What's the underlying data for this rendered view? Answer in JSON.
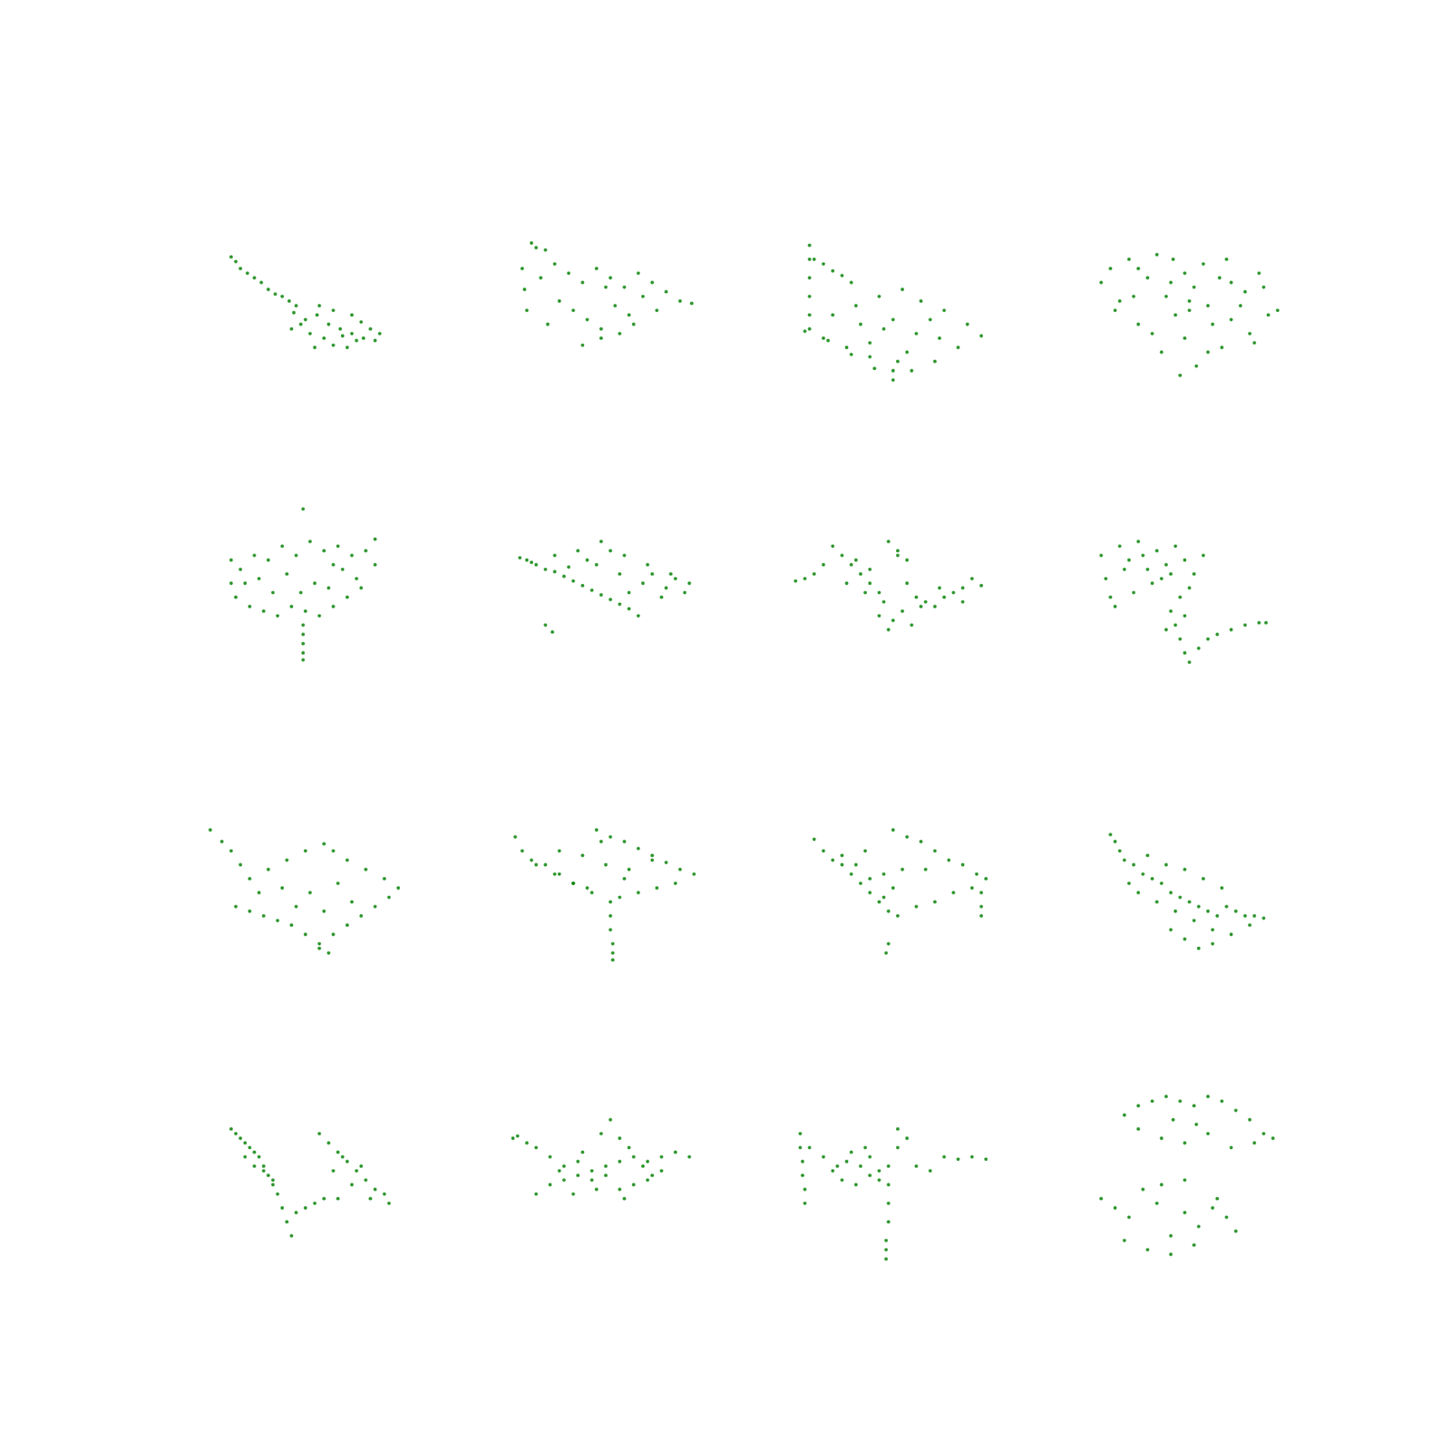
{
  "chart_data": [
    {
      "type": "scatter",
      "x": [
        18,
        20,
        22,
        25,
        28,
        31,
        34,
        37,
        40,
        43,
        46,
        45,
        50,
        55,
        60,
        65,
        70,
        75,
        80,
        52,
        58,
        62,
        68,
        72,
        48,
        56,
        62,
        74,
        78,
        66,
        54,
        44,
        70,
        82
      ],
      "values": [
        69,
        67,
        64,
        62,
        60,
        58,
        55,
        53,
        52,
        50,
        48,
        45,
        42,
        44,
        40,
        38,
        36,
        34,
        33,
        36,
        34,
        31,
        30,
        33,
        40,
        48,
        46,
        41,
        38,
        35,
        30,
        38,
        44,
        36
      ],
      "xlim": [
        0,
        100
      ],
      "ylim": [
        0,
        100
      ],
      "color": "#008000",
      "marker": "circle",
      "grid": false,
      "tick_labels": false
    },
    {
      "type": "scatter",
      "x": [
        18,
        20,
        24,
        14,
        15,
        16,
        22,
        28,
        34,
        40,
        46,
        52,
        58,
        64,
        70,
        76,
        82,
        87,
        30,
        36,
        42,
        48,
        54,
        60,
        66,
        40,
        48,
        56,
        25,
        72,
        62,
        50
      ],
      "values": [
        75,
        73,
        72,
        64,
        55,
        46,
        60,
        66,
        62,
        58,
        64,
        60,
        56,
        62,
        58,
        54,
        50,
        49,
        50,
        46,
        42,
        38,
        48,
        44,
        52,
        31,
        34,
        36,
        40,
        46,
        40,
        56
      ],
      "xlim": [
        0,
        100
      ],
      "ylim": [
        0,
        100
      ],
      "color": "#008000",
      "marker": "circle",
      "grid": false,
      "tick_labels": false
    },
    {
      "type": "scatter",
      "x": [
        14,
        14,
        14,
        14,
        14,
        14,
        16,
        20,
        24,
        28,
        32,
        54,
        44,
        34,
        24,
        12,
        20,
        30,
        40,
        50,
        62,
        72,
        82,
        88,
        78,
        68,
        58,
        50,
        42,
        32,
        22,
        50,
        60,
        40,
        66,
        56,
        46,
        36,
        52,
        70
      ],
      "values": [
        74,
        68,
        60,
        52,
        44,
        38,
        68,
        66,
        63,
        61,
        58,
        55,
        52,
        48,
        44,
        37,
        34,
        30,
        26,
        20,
        50,
        46,
        40,
        35,
        30,
        24,
        20,
        16,
        21,
        27,
        33,
        42,
        36,
        32,
        42,
        28,
        38,
        40,
        24,
        34
      ],
      "xlim": [
        0,
        100
      ],
      "ylim": [
        0,
        100
      ],
      "color": "#008000",
      "marker": "circle",
      "grid": false,
      "tick_labels": false
    },
    {
      "type": "scatter",
      "x": [
        14,
        18,
        22,
        26,
        30,
        34,
        38,
        42,
        46,
        50,
        54,
        58,
        62,
        66,
        70,
        74,
        78,
        82,
        86,
        90,
        20,
        28,
        36,
        44,
        52,
        60,
        68,
        76,
        84,
        30,
        40,
        50,
        60,
        70,
        80,
        45,
        55,
        48,
        52,
        65
      ],
      "values": [
        58,
        64,
        50,
        68,
        40,
        60,
        70,
        52,
        44,
        62,
        56,
        66,
        40,
        30,
        58,
        48,
        36,
        62,
        44,
        46,
        46,
        52,
        36,
        58,
        50,
        28,
        68,
        54,
        56,
        64,
        28,
        34,
        48,
        42,
        32,
        68,
        22,
        18,
        46,
        60
      ],
      "xlim": [
        0,
        100
      ],
      "ylim": [
        0,
        100
      ],
      "color": "#008000",
      "marker": "circle",
      "grid": false,
      "tick_labels": false
    },
    {
      "type": "scatter",
      "x": [
        49,
        18,
        18,
        20,
        26,
        32,
        38,
        44,
        50,
        56,
        62,
        68,
        74,
        80,
        80,
        76,
        70,
        64,
        58,
        52,
        46,
        40,
        34,
        28,
        22,
        30,
        42,
        54,
        66,
        36,
        48,
        60,
        72,
        49,
        49,
        49,
        49,
        49,
        24,
        62
      ],
      "values": [
        82,
        60,
        50,
        44,
        40,
        38,
        36,
        40,
        38,
        36,
        40,
        44,
        48,
        58,
        69,
        64,
        62,
        66,
        64,
        68,
        62,
        66,
        60,
        62,
        56,
        52,
        54,
        50,
        56,
        46,
        46,
        48,
        52,
        32,
        28,
        24,
        20,
        17,
        50,
        58
      ],
      "xlim": [
        0,
        100
      ],
      "ylim": [
        0,
        100
      ],
      "color": "#008000",
      "marker": "circle",
      "grid": false,
      "tick_labels": false
    },
    {
      "type": "scatter",
      "x": [
        13,
        16,
        20,
        24,
        28,
        32,
        36,
        40,
        44,
        48,
        52,
        56,
        60,
        64,
        28,
        38,
        48,
        58,
        68,
        78,
        86,
        84,
        74,
        46,
        56,
        66,
        76,
        24,
        27,
        18,
        34,
        42,
        60,
        70,
        52,
        80
      ],
      "values": [
        61,
        60,
        58,
        56,
        55,
        53,
        51,
        49,
        47,
        45,
        43,
        41,
        39,
        36,
        62,
        64,
        68,
        62,
        58,
        54,
        50,
        46,
        44,
        58,
        54,
        50,
        48,
        32,
        29,
        59,
        57,
        60,
        46,
        54,
        64,
        52
      ],
      "xlim": [
        0,
        100
      ],
      "ylim": [
        0,
        100
      ],
      "color": "#008000",
      "marker": "circle",
      "grid": false,
      "tick_labels": false
    },
    {
      "type": "scatter",
      "x": [
        8,
        12,
        16,
        20,
        24,
        28,
        32,
        36,
        40,
        44,
        48,
        52,
        56,
        60,
        64,
        68,
        72,
        76,
        80,
        84,
        88,
        30,
        38,
        46,
        54,
        62,
        50,
        48,
        44,
        58,
        40,
        34,
        70,
        80,
        52,
        56
      ],
      "values": [
        51,
        52,
        54,
        58,
        66,
        62,
        58,
        54,
        50,
        46,
        68,
        64,
        60,
        44,
        42,
        40,
        44,
        46,
        48,
        52,
        49,
        50,
        46,
        42,
        38,
        40,
        34,
        30,
        36,
        32,
        56,
        60,
        48,
        42,
        62,
        50
      ],
      "xlim": [
        0,
        100
      ],
      "ylim": [
        0,
        100
      ],
      "color": "#008000",
      "marker": "circle",
      "grid": false,
      "tick_labels": false
    },
    {
      "type": "scatter",
      "x": [
        14,
        16,
        18,
        22,
        26,
        30,
        34,
        38,
        42,
        46,
        50,
        54,
        58,
        20,
        28,
        36,
        44,
        52,
        24,
        32,
        40,
        48,
        44,
        46,
        48,
        50,
        52,
        56,
        60,
        64,
        70,
        76,
        82,
        85,
        42,
        50
      ],
      "values": [
        62,
        52,
        44,
        66,
        60,
        68,
        56,
        64,
        58,
        66,
        60,
        54,
        62,
        40,
        46,
        50,
        54,
        48,
        56,
        62,
        52,
        44,
        38,
        32,
        26,
        20,
        16,
        22,
        26,
        28,
        30,
        32,
        33,
        33,
        30,
        36
      ],
      "xlim": [
        0,
        100
      ],
      "ylim": [
        0,
        100
      ],
      "color": "#008000",
      "marker": "circle",
      "grid": false,
      "tick_labels": false
    },
    {
      "type": "scatter",
      "x": [
        9,
        14,
        18,
        22,
        20,
        26,
        32,
        38,
        44,
        50,
        56,
        62,
        68,
        74,
        80,
        86,
        90,
        84,
        76,
        68,
        62,
        58,
        50,
        42,
        34,
        26,
        40,
        52,
        64,
        46,
        58,
        70,
        56,
        60,
        30
      ],
      "values": [
        75,
        70,
        66,
        60,
        42,
        40,
        38,
        36,
        34,
        30,
        26,
        30,
        34,
        38,
        42,
        46,
        50,
        54,
        58,
        62,
        66,
        69,
        66,
        62,
        58,
        54,
        50,
        48,
        52,
        42,
        40,
        44,
        24,
        22,
        48
      ],
      "xlim": [
        0,
        100
      ],
      "ylim": [
        0,
        100
      ],
      "color": "#008000",
      "marker": "circle",
      "grid": false,
      "tick_labels": false
    },
    {
      "type": "scatter",
      "x": [
        11,
        14,
        18,
        24,
        30,
        36,
        42,
        46,
        52,
        58,
        64,
        70,
        76,
        82,
        88,
        80,
        72,
        64,
        56,
        52,
        44,
        36,
        28,
        20,
        30,
        40,
        50,
        60,
        70,
        48,
        58,
        52,
        52,
        53,
        53,
        53
      ],
      "values": [
        72,
        66,
        62,
        60,
        56,
        52,
        50,
        75,
        72,
        70,
        67,
        64,
        61,
        58,
        56,
        52,
        50,
        48,
        46,
        44,
        48,
        52,
        56,
        60,
        66,
        64,
        60,
        58,
        62,
        70,
        54,
        38,
        32,
        26,
        22,
        19
      ],
      "xlim": [
        0,
        100
      ],
      "ylim": [
        0,
        100
      ],
      "color": "#008000",
      "marker": "circle",
      "grid": false,
      "tick_labels": false
    },
    {
      "type": "scatter",
      "x": [
        16,
        20,
        24,
        28,
        32,
        36,
        40,
        44,
        48,
        50,
        56,
        62,
        68,
        74,
        80,
        86,
        90,
        84,
        76,
        68,
        60,
        52,
        46,
        40,
        34,
        28,
        50,
        46,
        54,
        88,
        88,
        88,
        47,
        48,
        38,
        64
      ],
      "values": [
        71,
        66,
        62,
        60,
        56,
        52,
        48,
        44,
        40,
        75,
        72,
        70,
        66,
        62,
        60,
        56,
        54,
        50,
        48,
        44,
        42,
        38,
        56,
        54,
        60,
        64,
        50,
        46,
        58,
        48,
        42,
        38,
        22,
        26,
        66,
        58
      ],
      "xlim": [
        0,
        100
      ],
      "ylim": [
        0,
        100
      ],
      "color": "#008000",
      "marker": "circle",
      "grid": false,
      "tick_labels": false
    },
    {
      "type": "scatter",
      "x": [
        18,
        20,
        22,
        24,
        28,
        32,
        36,
        40,
        44,
        48,
        52,
        56,
        60,
        64,
        68,
        72,
        76,
        80,
        84,
        30,
        38,
        46,
        54,
        62,
        70,
        78,
        34,
        42,
        50,
        58,
        66,
        56,
        50,
        62,
        26,
        44
      ],
      "values": [
        73,
        70,
        66,
        62,
        60,
        56,
        54,
        52,
        48,
        46,
        44,
        42,
        40,
        38,
        42,
        40,
        38,
        38,
        37,
        48,
        44,
        40,
        36,
        32,
        30,
        34,
        64,
        60,
        58,
        54,
        50,
        24,
        28,
        26,
        52,
        32
      ],
      "xlim": [
        0,
        100
      ],
      "ylim": [
        0,
        100
      ],
      "color": "#008000",
      "marker": "circle",
      "grid": false,
      "tick_labels": false
    },
    {
      "type": "scatter",
      "x": [
        18,
        20,
        22,
        24,
        26,
        28,
        30,
        32,
        34,
        36,
        38,
        40,
        42,
        44,
        24,
        28,
        32,
        36,
        46,
        50,
        54,
        58,
        56,
        60,
        64,
        68,
        72,
        76,
        80,
        84,
        86,
        62,
        70,
        78,
        66,
        74,
        64
      ],
      "values": [
        74,
        72,
        70,
        68,
        66,
        64,
        62,
        58,
        54,
        50,
        46,
        40,
        34,
        28,
        62,
        58,
        56,
        52,
        38,
        40,
        42,
        44,
        72,
        68,
        64,
        60,
        56,
        52,
        48,
        46,
        42,
        56,
        50,
        44,
        62,
        58,
        44
      ],
      "xlim": [
        0,
        100
      ],
      "ylim": [
        0,
        100
      ],
      "color": "#008000",
      "marker": "circle",
      "grid": false,
      "tick_labels": false
    },
    {
      "type": "scatter",
      "x": [
        10,
        12,
        16,
        20,
        26,
        32,
        38,
        44,
        50,
        56,
        62,
        68,
        74,
        80,
        86,
        20,
        26,
        32,
        38,
        44,
        50,
        56,
        62,
        68,
        74,
        52,
        48,
        56,
        40,
        60,
        30,
        66,
        46,
        58,
        70,
        36
      ],
      "values": [
        70,
        71,
        68,
        46,
        50,
        52,
        54,
        56,
        58,
        60,
        62,
        60,
        62,
        64,
        62,
        66,
        62,
        58,
        60,
        52,
        54,
        48,
        50,
        52,
        56,
        78,
        72,
        70,
        64,
        66,
        56,
        58,
        48,
        44,
        54,
        46
      ],
      "xlim": [
        0,
        100
      ],
      "ylim": [
        0,
        100
      ],
      "color": "#008000",
      "marker": "circle",
      "grid": false,
      "tick_labels": false
    },
    {
      "type": "scatter",
      "x": [
        10,
        10,
        11,
        11,
        12,
        12,
        14,
        20,
        26,
        32,
        36,
        40,
        44,
        28,
        34,
        40,
        48,
        48,
        48,
        48,
        47,
        47,
        47,
        52,
        56,
        72,
        78,
        84,
        90,
        52,
        30,
        38,
        24,
        44,
        60,
        66
      ],
      "values": [
        72,
        66,
        60,
        54,
        48,
        42,
        66,
        62,
        58,
        64,
        58,
        62,
        56,
        52,
        50,
        54,
        58,
        50,
        42,
        34,
        26,
        22,
        18,
        74,
        70,
        62,
        61,
        62,
        61,
        66,
        60,
        66,
        56,
        52,
        58,
        56
      ],
      "xlim": [
        0,
        100
      ],
      "ylim": [
        0,
        100
      ],
      "color": "#008000",
      "marker": "circle",
      "grid": false,
      "tick_labels": false
    },
    {
      "type": "scatter",
      "x": [
        24,
        30,
        36,
        42,
        48,
        54,
        60,
        66,
        72,
        78,
        84,
        88,
        30,
        40,
        50,
        60,
        70,
        80,
        45,
        55,
        14,
        20,
        26,
        32,
        38,
        44,
        50,
        56,
        62,
        68,
        72,
        24,
        34,
        44,
        54,
        64,
        40,
        50
      ],
      "values": [
        80,
        84,
        86,
        88,
        86,
        84,
        88,
        86,
        82,
        78,
        72,
        70,
        74,
        70,
        68,
        72,
        66,
        68,
        78,
        76,
        44,
        40,
        36,
        48,
        42,
        28,
        38,
        32,
        40,
        36,
        30,
        26,
        22,
        20,
        24,
        44,
        50,
        52
      ],
      "xlim": [
        0,
        100
      ],
      "ylim": [
        0,
        100
      ],
      "color": "#008000",
      "marker": "circle",
      "grid": false,
      "tick_labels": false
    }
  ]
}
